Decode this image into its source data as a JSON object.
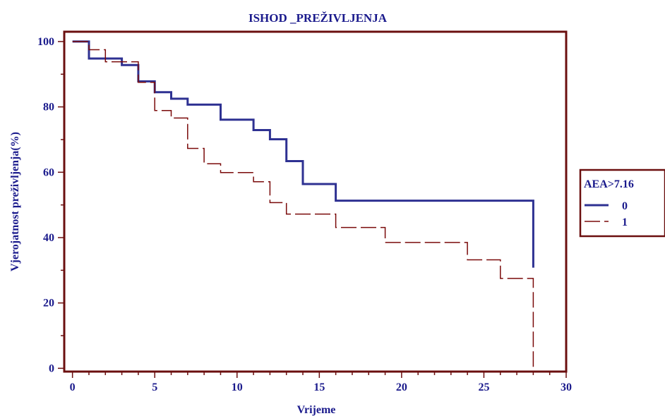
{
  "chart_data": {
    "type": "line",
    "title": "ISHOD _PREŽIVLJENJA",
    "xlabel": "Vrijeme",
    "ylabel": "Vjerojatnost preživljenja(%)",
    "xlim": [
      -0.5,
      30
    ],
    "ylim": [
      -1,
      103
    ],
    "xticks": [
      0,
      5,
      10,
      15,
      20,
      25,
      30
    ],
    "yticks": [
      0,
      20,
      40,
      60,
      80,
      100
    ],
    "grid": false,
    "legend": {
      "title": "AEA>7.16",
      "position": "right",
      "entries": [
        "0",
        "1"
      ]
    },
    "colors": {
      "series0": "#2e3192",
      "series1": "#7a0a0a",
      "frame": "#6b0f0f",
      "text": "#1a1a8c"
    },
    "series": [
      {
        "name": "0",
        "style": "solid",
        "step": [
          [
            0,
            100
          ],
          [
            1,
            100
          ],
          [
            1,
            94.8
          ],
          [
            3,
            94.8
          ],
          [
            3,
            92.8
          ],
          [
            4,
            92.8
          ],
          [
            4,
            87.8
          ],
          [
            5,
            87.8
          ],
          [
            5,
            84.5
          ],
          [
            6,
            84.5
          ],
          [
            6,
            82.5
          ],
          [
            7,
            82.5
          ],
          [
            7,
            80.7
          ],
          [
            9,
            80.7
          ],
          [
            9,
            76.1
          ],
          [
            11,
            76.1
          ],
          [
            11,
            72.9
          ],
          [
            12,
            72.9
          ],
          [
            12,
            70.1
          ],
          [
            13,
            70.1
          ],
          [
            13,
            63.4
          ],
          [
            14,
            63.4
          ],
          [
            14,
            56.4
          ],
          [
            16,
            56.4
          ],
          [
            16,
            51.3
          ],
          [
            28,
            51.3
          ],
          [
            28,
            30.8
          ]
        ]
      },
      {
        "name": "1",
        "style": "dashed",
        "step": [
          [
            0,
            100
          ],
          [
            1,
            100
          ],
          [
            1,
            97.5
          ],
          [
            2,
            97.5
          ],
          [
            2,
            93.8
          ],
          [
            4,
            93.8
          ],
          [
            4,
            87.5
          ],
          [
            5,
            87.5
          ],
          [
            5,
            78.9
          ],
          [
            6,
            78.9
          ],
          [
            6,
            76.6
          ],
          [
            7,
            76.6
          ],
          [
            7,
            67.3
          ],
          [
            8,
            67.3
          ],
          [
            8,
            62.6
          ],
          [
            9,
            62.6
          ],
          [
            9,
            59.9
          ],
          [
            11,
            59.9
          ],
          [
            11,
            57.1
          ],
          [
            12,
            57.1
          ],
          [
            12,
            50.7
          ],
          [
            13,
            50.7
          ],
          [
            13,
            47.2
          ],
          [
            16,
            47.2
          ],
          [
            16,
            43.1
          ],
          [
            19,
            43.1
          ],
          [
            19,
            38.5
          ],
          [
            24,
            38.5
          ],
          [
            24,
            33.2
          ],
          [
            26,
            33.2
          ],
          [
            26,
            27.5
          ],
          [
            28,
            27.5
          ],
          [
            28,
            0
          ]
        ]
      }
    ]
  }
}
